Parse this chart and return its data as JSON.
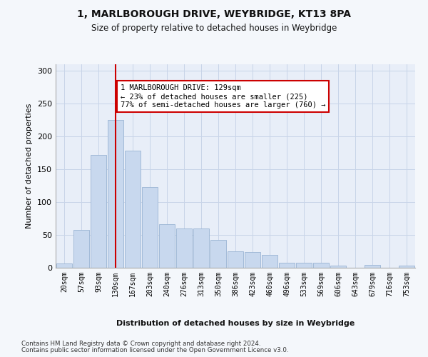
{
  "title1": "1, MARLBOROUGH DRIVE, WEYBRIDGE, KT13 8PA",
  "title2": "Size of property relative to detached houses in Weybridge",
  "xlabel": "Distribution of detached houses by size in Weybridge",
  "ylabel": "Number of detached properties",
  "bar_color": "#c8d8ee",
  "bar_edgecolor": "#9ab4d4",
  "categories": [
    "20sqm",
    "57sqm",
    "93sqm",
    "130sqm",
    "167sqm",
    "203sqm",
    "240sqm",
    "276sqm",
    "313sqm",
    "350sqm",
    "386sqm",
    "423sqm",
    "460sqm",
    "496sqm",
    "533sqm",
    "569sqm",
    "606sqm",
    "643sqm",
    "679sqm",
    "716sqm",
    "753sqm"
  ],
  "values": [
    7,
    58,
    172,
    225,
    178,
    123,
    66,
    60,
    60,
    42,
    25,
    24,
    20,
    8,
    8,
    8,
    3,
    0,
    4,
    0,
    3
  ],
  "vline_color": "#cc0000",
  "annotation_text": "1 MARLBOROUGH DRIVE: 129sqm\n← 23% of detached houses are smaller (225)\n77% of semi-detached houses are larger (760) →",
  "annotation_box_color": "#ffffff",
  "annotation_box_edgecolor": "#cc0000",
  "ylim": [
    0,
    310
  ],
  "yticks": [
    0,
    50,
    100,
    150,
    200,
    250,
    300
  ],
  "grid_color": "#c8d4e8",
  "bg_color": "#e8eef8",
  "fig_color": "#f4f7fb",
  "footer1": "Contains HM Land Registry data © Crown copyright and database right 2024.",
  "footer2": "Contains public sector information licensed under the Open Government Licence v3.0."
}
